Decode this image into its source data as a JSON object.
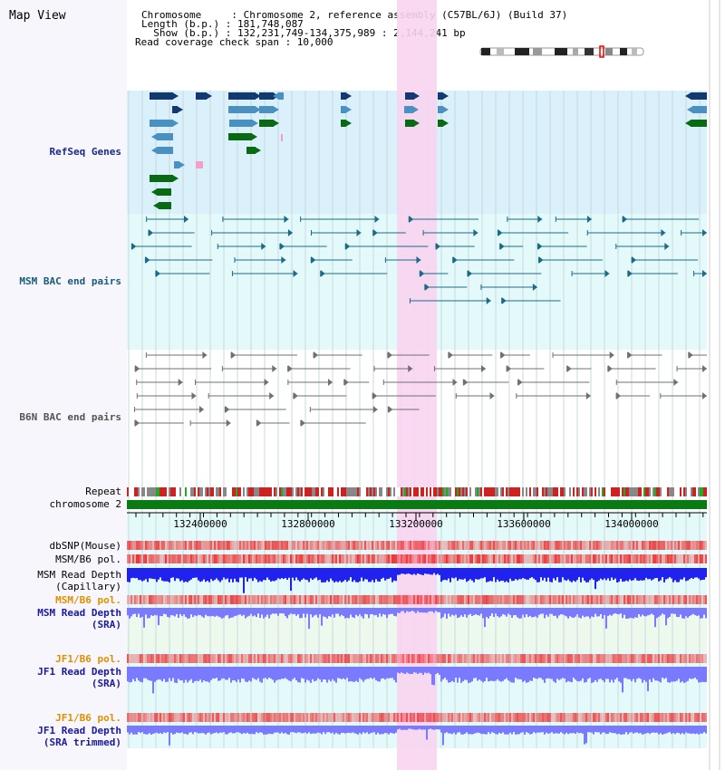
{
  "header": {
    "view_title": "Map View",
    "chromosome_line": "Chromosome     : Chromosome 2, reference assembly (C57BL/6J) (Build 37)",
    "length_line": "Length (b.p.) : 181,748,087",
    "show_line": "  Show (b.p.) : 132,231,749-134,375,989 : 2,144,241 bp",
    "coverage_line": "Read coverage check span : 10,000"
  },
  "tracks": {
    "refseq": "RefSeq Genes",
    "msm_bac": "MSM BAC end pairs",
    "b6n_bac": "B6N BAC end pairs",
    "repeat": "Repeat",
    "chromosome": "chromosome 2",
    "dbsnp": "dbSNP(Mouse)",
    "msm_b6_pol": "MSM/B6 pol.",
    "msm_depth_cap_1": "MSM Read Depth",
    "msm_depth_cap_2": "(Capillary)",
    "msm_b6_pol_sra": "MSM/B6 pol.",
    "msm_depth_sra_1": "MSM Read Depth",
    "msm_depth_sra_2": "(SRA)",
    "jf1_b6_pol": "JF1/B6 pol.",
    "jf1_depth_1": "JF1 Read Depth",
    "jf1_depth_2": "(SRA)",
    "jf1_b6_pol_trim": "JF1/B6 pol.",
    "jf1_depth_trim_1": "JF1 Read Depth",
    "jf1_depth_trim_2": "(SRA trimmed)"
  },
  "axis": {
    "ticks": [
      "132400000",
      "132800000",
      "133200000",
      "133600000",
      "134000000"
    ]
  },
  "colors": {
    "refseq_label": "#1a2a8a",
    "msm_label": "#1a5a7a",
    "b6n_label": "#555555",
    "orange_label": "#e09000",
    "blue_label": "#1a1aa0",
    "refseq_bg": "#daf0fa",
    "msm_bg": "#e4fafa",
    "highlight": "#f8d4f0",
    "gene_dark": "#123a70",
    "gene_mid": "#4a90c0",
    "gene_green": "#0a6a14",
    "bac_msm": "#1a6a8a",
    "bac_b6n": "#707070",
    "chromosome_bar": "#0a7a14",
    "depth_blue": "#2222ee",
    "depth_light": "#7a7aff",
    "pol_red": "#ee3333"
  }
}
